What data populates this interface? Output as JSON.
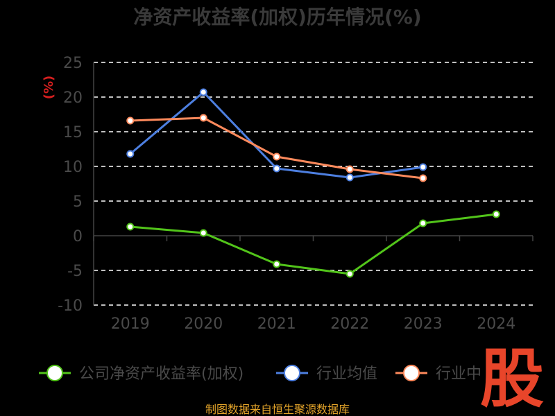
{
  "chart_data": {
    "type": "line",
    "title": "净资产收益率(加权)历年情况(%)",
    "ylabel": "(%)",
    "categories": [
      "2019",
      "2020",
      "2021",
      "2022",
      "2023",
      "2024"
    ],
    "ylim": [
      -10,
      25
    ],
    "yticks": [
      "25",
      "20",
      "15",
      "10",
      "5",
      "0",
      "-5",
      "-10"
    ],
    "grid": true,
    "legend_position": "bottom",
    "series": [
      {
        "name": "公司净资产收益率(加权)",
        "color": "#52c41a",
        "values": [
          1.3,
          0.4,
          -4.1,
          -5.5,
          1.8,
          3.1
        ]
      },
      {
        "name": "行业均值",
        "color": "#4d7fe0",
        "values": [
          11.8,
          20.7,
          9.7,
          8.4,
          9.9,
          null
        ]
      },
      {
        "name": "行业中",
        "color": "#ff8a5c",
        "values": [
          16.6,
          17.0,
          11.4,
          9.6,
          8.3,
          null
        ]
      }
    ]
  },
  "watermark": {
    "char": "股",
    "color": "#e8452a"
  },
  "source": "制图数据来自恒生聚源数据库"
}
